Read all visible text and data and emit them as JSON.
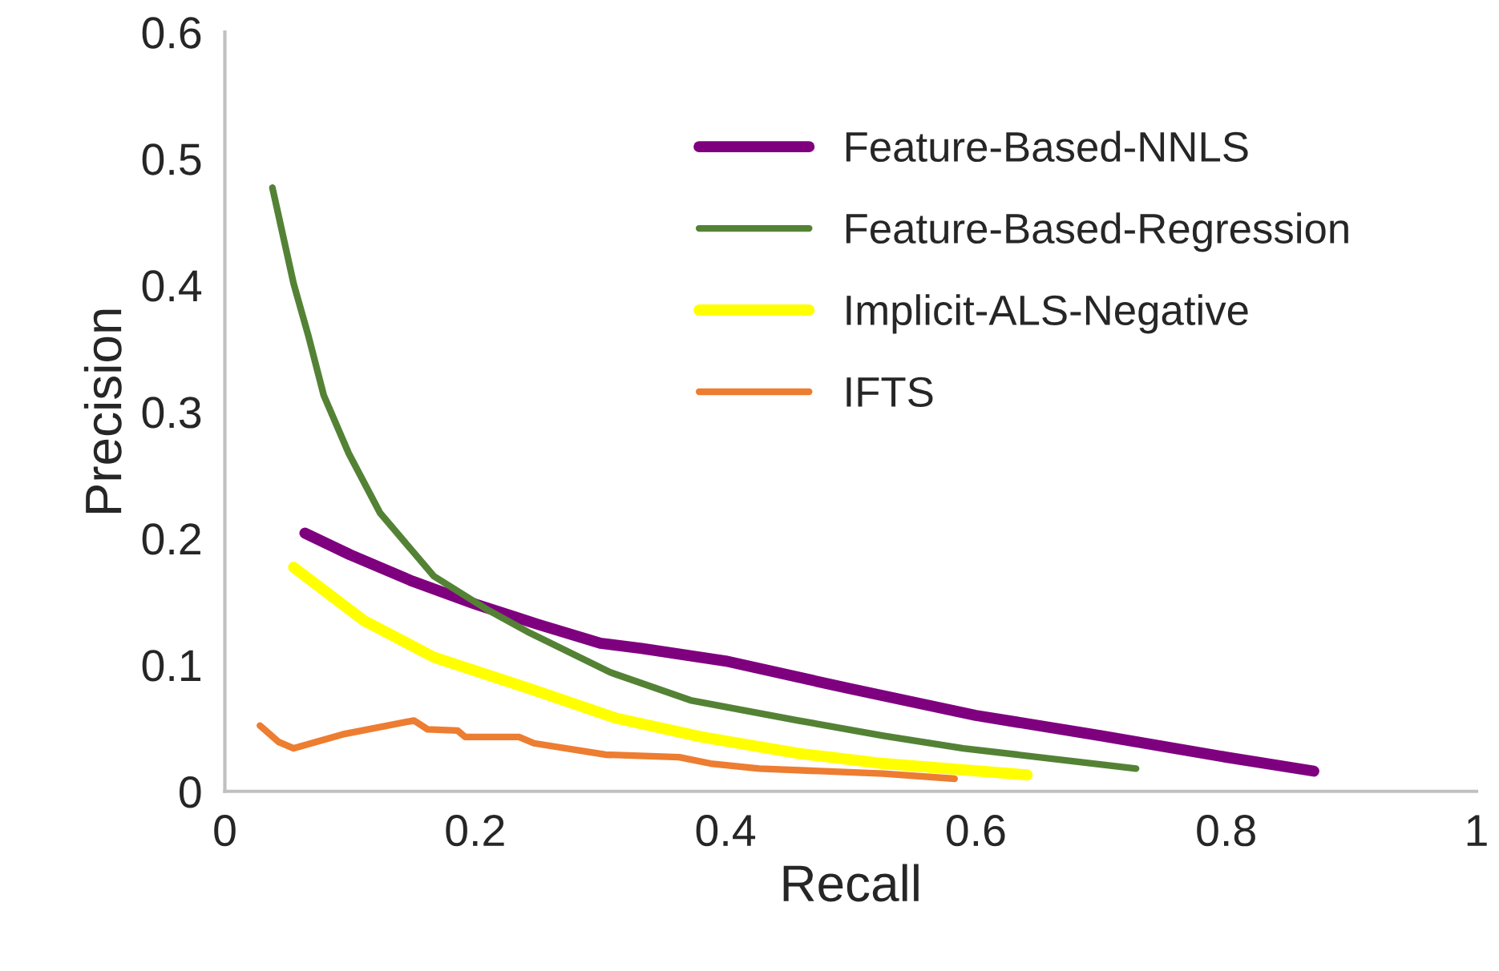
{
  "chart_data": {
    "type": "line",
    "xlabel": "Recall",
    "ylabel": "Precision",
    "xlim": [
      0,
      1
    ],
    "xticks": [
      0,
      0.2,
      0.4,
      0.6,
      0.8,
      1
    ],
    "ylim": [
      0,
      0.6
    ],
    "yticks": [
      0,
      0.1,
      0.2,
      0.3,
      0.4,
      0.5,
      0.6
    ],
    "grid": false,
    "legend": "top right",
    "marker": "none",
    "line_style": "solid",
    "series": [
      {
        "name": "Feature-Based-NNLS",
        "color": "#7f007f",
        "x": [
          0.064,
          0.1,
          0.15,
          0.2,
          0.25,
          0.3,
          0.333,
          0.4,
          0.5,
          0.6,
          0.7,
          0.8,
          0.87
        ],
        "values": [
          0.204,
          0.187,
          0.166,
          0.148,
          0.132,
          0.117,
          0.113,
          0.103,
          0.081,
          0.06,
          0.044,
          0.027,
          0.016
        ]
      },
      {
        "name": "Feature-Based-Regression",
        "color": "#548235",
        "x": [
          0.038,
          0.055,
          0.067,
          0.079,
          0.099,
          0.124,
          0.167,
          0.209,
          0.244,
          0.308,
          0.372,
          0.458,
          0.526,
          0.59,
          0.728
        ],
        "values": [
          0.477,
          0.401,
          0.359,
          0.313,
          0.267,
          0.22,
          0.17,
          0.144,
          0.125,
          0.094,
          0.072,
          0.056,
          0.044,
          0.034,
          0.018
        ]
      },
      {
        "name": "Implicit-ALS-Negative",
        "color": "#ffff00",
        "x": [
          0.055,
          0.111,
          0.167,
          0.244,
          0.312,
          0.381,
          0.458,
          0.526,
          0.641
        ],
        "values": [
          0.177,
          0.135,
          0.106,
          0.081,
          0.058,
          0.043,
          0.03,
          0.022,
          0.013
        ]
      },
      {
        "name": "IFTS",
        "color": "#ed7d31",
        "x": [
          0.028,
          0.043,
          0.055,
          0.094,
          0.151,
          0.162,
          0.186,
          0.192,
          0.235,
          0.247,
          0.304,
          0.363,
          0.388,
          0.427,
          0.526,
          0.583
        ],
        "values": [
          0.052,
          0.039,
          0.034,
          0.045,
          0.056,
          0.049,
          0.048,
          0.043,
          0.043,
          0.038,
          0.029,
          0.027,
          0.022,
          0.018,
          0.014,
          0.01
        ]
      }
    ]
  }
}
